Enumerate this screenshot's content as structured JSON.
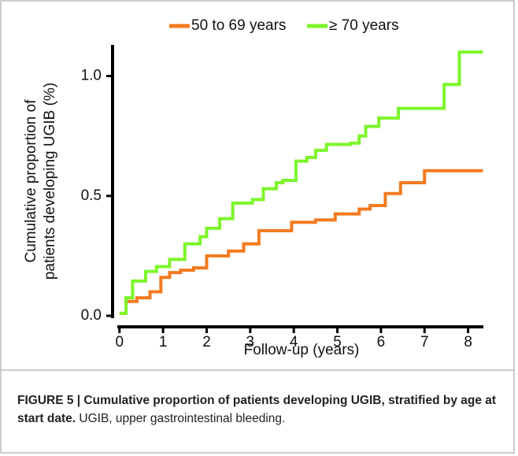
{
  "chart_data": {
    "type": "step",
    "xlabel": "Follow-up (years)",
    "ylabel": [
      "Cumulative proportion of",
      "patients developing UGIB (%)"
    ],
    "xlim": [
      -0.05,
      8.35
    ],
    "ylim": [
      -0.01,
      1.13
    ],
    "xticks": [
      0,
      1,
      2,
      3,
      4,
      5,
      6,
      7,
      8
    ],
    "yticks": [
      {
        "value": 0,
        "label": "0.0"
      },
      {
        "value": 0.5,
        "label": "0.5"
      },
      {
        "value": 1,
        "label": "1.0"
      }
    ],
    "legend": "top",
    "series": [
      {
        "name": "50 to 69 years",
        "color": "#f47a1f",
        "x": [
          0,
          0.15,
          0.4,
          0.7,
          0.95,
          1.15,
          1.4,
          1.7,
          2.0,
          2.5,
          2.85,
          3.2,
          3.95,
          4.5,
          4.95,
          5.5,
          5.75,
          6.1,
          6.45,
          7.0,
          8.34
        ],
        "values": [
          0.01,
          0.06,
          0.075,
          0.1,
          0.16,
          0.18,
          0.19,
          0.2,
          0.25,
          0.27,
          0.3,
          0.355,
          0.39,
          0.4,
          0.425,
          0.445,
          0.46,
          0.51,
          0.555,
          0.605,
          0.605
        ]
      },
      {
        "name": "≥ 70 years",
        "color": "#7cf52a",
        "x": [
          0,
          0.15,
          0.3,
          0.6,
          0.85,
          1.15,
          1.5,
          1.85,
          2.0,
          2.3,
          2.6,
          3.05,
          3.3,
          3.6,
          3.75,
          4.05,
          4.3,
          4.5,
          4.75,
          5.3,
          5.5,
          5.65,
          5.95,
          6.4,
          7.45,
          7.8,
          8.34
        ],
        "values": [
          0.01,
          0.075,
          0.145,
          0.185,
          0.205,
          0.235,
          0.3,
          0.33,
          0.365,
          0.405,
          0.47,
          0.485,
          0.53,
          0.555,
          0.565,
          0.645,
          0.66,
          0.69,
          0.715,
          0.72,
          0.75,
          0.79,
          0.825,
          0.865,
          0.965,
          1.1,
          1.1
        ]
      }
    ]
  },
  "caption": {
    "label": "FIGURE 5 | Cumulative proportion of patients developing UGIB, stratified by age at start date.",
    "text": "UGIB, upper gastrointestinal bleeding."
  }
}
